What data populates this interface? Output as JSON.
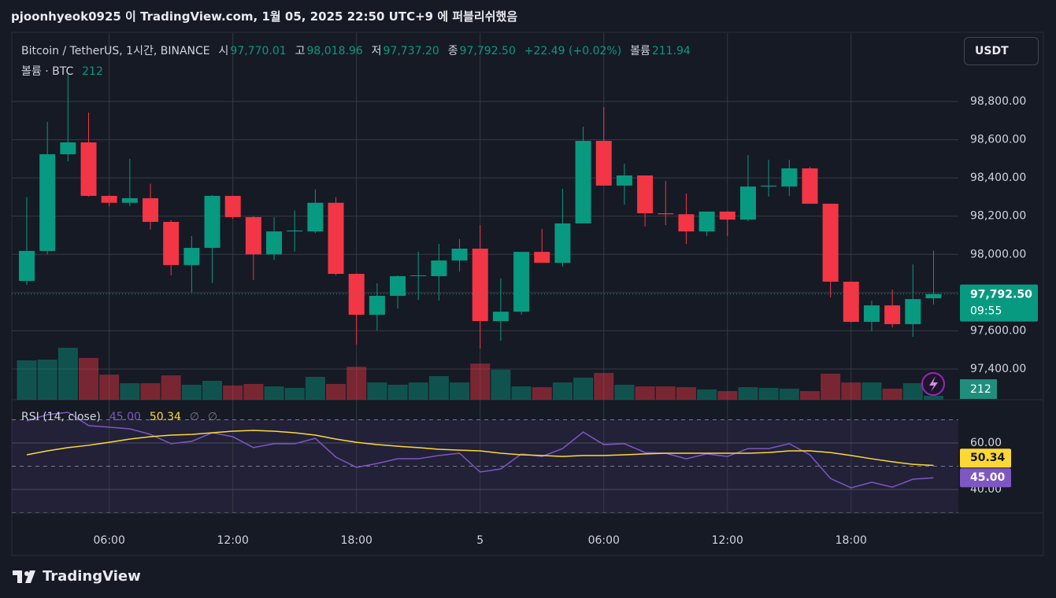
{
  "header": {
    "title": "pjoonhyeok0925 이 TradingView.com, 1월 05, 2025 22:50 UTC+9 에 퍼블리쉬했음"
  },
  "chart_data": {
    "type": "candlestick",
    "symbol": "Bitcoin / TetherUS, 1시간, BINANCE",
    "legend": {
      "open_label": "시",
      "open": "97,770.01",
      "high_label": "고",
      "high": "98,018.96",
      "low_label": "저",
      "low": "97,737.20",
      "close_label": "종",
      "close": "97,792.50",
      "change": "+22.49 (+0.02%)",
      "volume_label": "볼륨",
      "volume": "211.94"
    },
    "currency": "USDT",
    "categories": [
      null,
      null,
      null,
      null,
      "06:00",
      null,
      null,
      null,
      null,
      null,
      "12:00",
      null,
      null,
      null,
      null,
      null,
      "18:00",
      null,
      null,
      null,
      null,
      null,
      "5",
      null,
      null,
      null,
      null,
      null,
      "06:00",
      null,
      null,
      null,
      null,
      null,
      "12:00",
      null,
      null,
      null,
      null,
      null,
      "18:00",
      null,
      null,
      null,
      null
    ],
    "open": [
      97861,
      98018,
      98524,
      98586,
      98306,
      98270,
      98294,
      98170,
      97944,
      98034,
      98306,
      98195,
      98000,
      98120,
      98120,
      98270,
      97898,
      97684,
      97783,
      97886,
      97886,
      97968,
      98030,
      97651,
      97700,
      98013,
      97956,
      98162,
      98594,
      98360,
      98413,
      98215,
      98210,
      98120,
      98224,
      98182,
      98355,
      98355,
      98450,
      98265,
      97857,
      97647,
      97733,
      97635,
      97770.01
    ],
    "high": [
      98300,
      98693,
      98940,
      98742,
      98310,
      98500,
      98370,
      98180,
      98096,
      98310,
      98306,
      98200,
      98195,
      98230,
      98340,
      98300,
      97900,
      97849,
      97890,
      98014,
      98055,
      98080,
      98154,
      97874,
      98013,
      98133,
      98343,
      98668,
      98771,
      98475,
      98413,
      98384,
      98318,
      98224,
      98224,
      98520,
      98495,
      98495,
      98458,
      98265,
      97857,
      97758,
      97816,
      97948,
      98018.96
    ],
    "low": [
      97840,
      98000,
      98487,
      98302,
      98252,
      98252,
      98130,
      97890,
      97800,
      97850,
      98186,
      97865,
      97970,
      98015,
      98112,
      97890,
      97528,
      97602,
      97717,
      97762,
      97758,
      97910,
      97507,
      97548,
      97684,
      97956,
      97935,
      98162,
      98360,
      98260,
      98145,
      98153,
      98055,
      98096,
      98096,
      98174,
      98302,
      98306,
      98265,
      97775,
      97643,
      97598,
      97618,
      97569,
      97737.2
    ],
    "close": [
      98018,
      98524,
      98586,
      98306,
      98270,
      98294,
      98170,
      97944,
      98034,
      98306,
      98195,
      98000,
      98120,
      98125,
      98270,
      97898,
      97684,
      97783,
      97886,
      97890,
      97968,
      98030,
      97651,
      97700,
      98013,
      97956,
      98162,
      98594,
      98360,
      98413,
      98215,
      98210,
      98120,
      98224,
      98182,
      98355,
      98360,
      98450,
      98265,
      97857,
      97647,
      97733,
      97635,
      97766,
      97792.5
    ],
    "colors": {
      "up": "#089981",
      "down": "#f23645"
    },
    "ylim": [
      97239.4,
      99158.2
    ],
    "yticks": [
      {
        "value": 97400,
        "label": "97,400.00"
      },
      {
        "value": 97600,
        "label": "97,600.00"
      },
      {
        "value": 97800,
        "label": "97,800.00"
      },
      {
        "value": 98000,
        "label": "98,000.00"
      },
      {
        "value": 98200,
        "label": "98,200.00"
      },
      {
        "value": 98400,
        "label": "98,400.00"
      },
      {
        "value": 98600,
        "label": "98,600.00"
      },
      {
        "value": 98800,
        "label": "98,800.00"
      }
    ],
    "grid": true,
    "last_price": {
      "value": 97792.5,
      "label": "97,792.50",
      "countdown": "09:55"
    },
    "volume": {
      "title": "볼륨 · BTC",
      "ylim": [
        0,
        19572
      ],
      "values": [
        2100,
        2140,
        2770,
        2230,
        1340,
        880,
        880,
        1300,
        800,
        1010,
        760,
        840,
        710,
        630,
        1220,
        840,
        1760,
        920,
        800,
        920,
        1260,
        920,
        1930,
        1600,
        710,
        670,
        920,
        1180,
        1430,
        800,
        710,
        710,
        670,
        550,
        460,
        670,
        630,
        590,
        460,
        1390,
        920,
        920,
        590,
        880,
        211.94
      ],
      "value_label": "212"
    },
    "rsi": {
      "title": "RSI (14, close)",
      "ylim": [
        29.83,
        78.64
      ],
      "yticks": [
        {
          "value": 40,
          "label": "40.00"
        },
        {
          "value": 60,
          "label": "60.00"
        }
      ],
      "bands": [
        70,
        50,
        30
      ],
      "legend_extra": [
        "∅",
        "∅"
      ],
      "series": [
        {
          "color": "#7e57c2",
          "value_label": "45.00",
          "values": [
            69.5,
            72.2,
            73.2,
            67.5,
            66.8,
            66.1,
            63.7,
            59.7,
            60.7,
            64.4,
            62.7,
            58.0,
            59.7,
            59.7,
            62.0,
            53.9,
            49.5,
            51.2,
            53.2,
            53.2,
            54.6,
            55.6,
            47.5,
            48.8,
            55.3,
            54.2,
            57.6,
            64.7,
            59.3,
            59.7,
            55.9,
            55.6,
            53.2,
            55.3,
            54.2,
            57.6,
            57.6,
            59.7,
            54.9,
            44.7,
            40.7,
            43.1,
            41.0,
            44.4,
            45.0
          ]
        },
        {
          "color": "#fdd835",
          "value_label": "50.34",
          "values": [
            54.9,
            56.6,
            58.0,
            59.0,
            60.3,
            61.7,
            62.7,
            63.4,
            63.7,
            64.4,
            65.1,
            65.4,
            65.1,
            64.4,
            63.4,
            61.7,
            60.3,
            59.3,
            58.6,
            58.0,
            57.3,
            56.9,
            56.6,
            55.6,
            54.9,
            54.6,
            54.2,
            54.6,
            54.6,
            54.9,
            55.3,
            55.6,
            55.6,
            55.6,
            55.6,
            55.6,
            55.9,
            56.6,
            56.6,
            55.9,
            54.6,
            53.2,
            51.9,
            50.8,
            50.34
          ]
        }
      ]
    }
  },
  "footer": {
    "brand": "TradingView"
  }
}
